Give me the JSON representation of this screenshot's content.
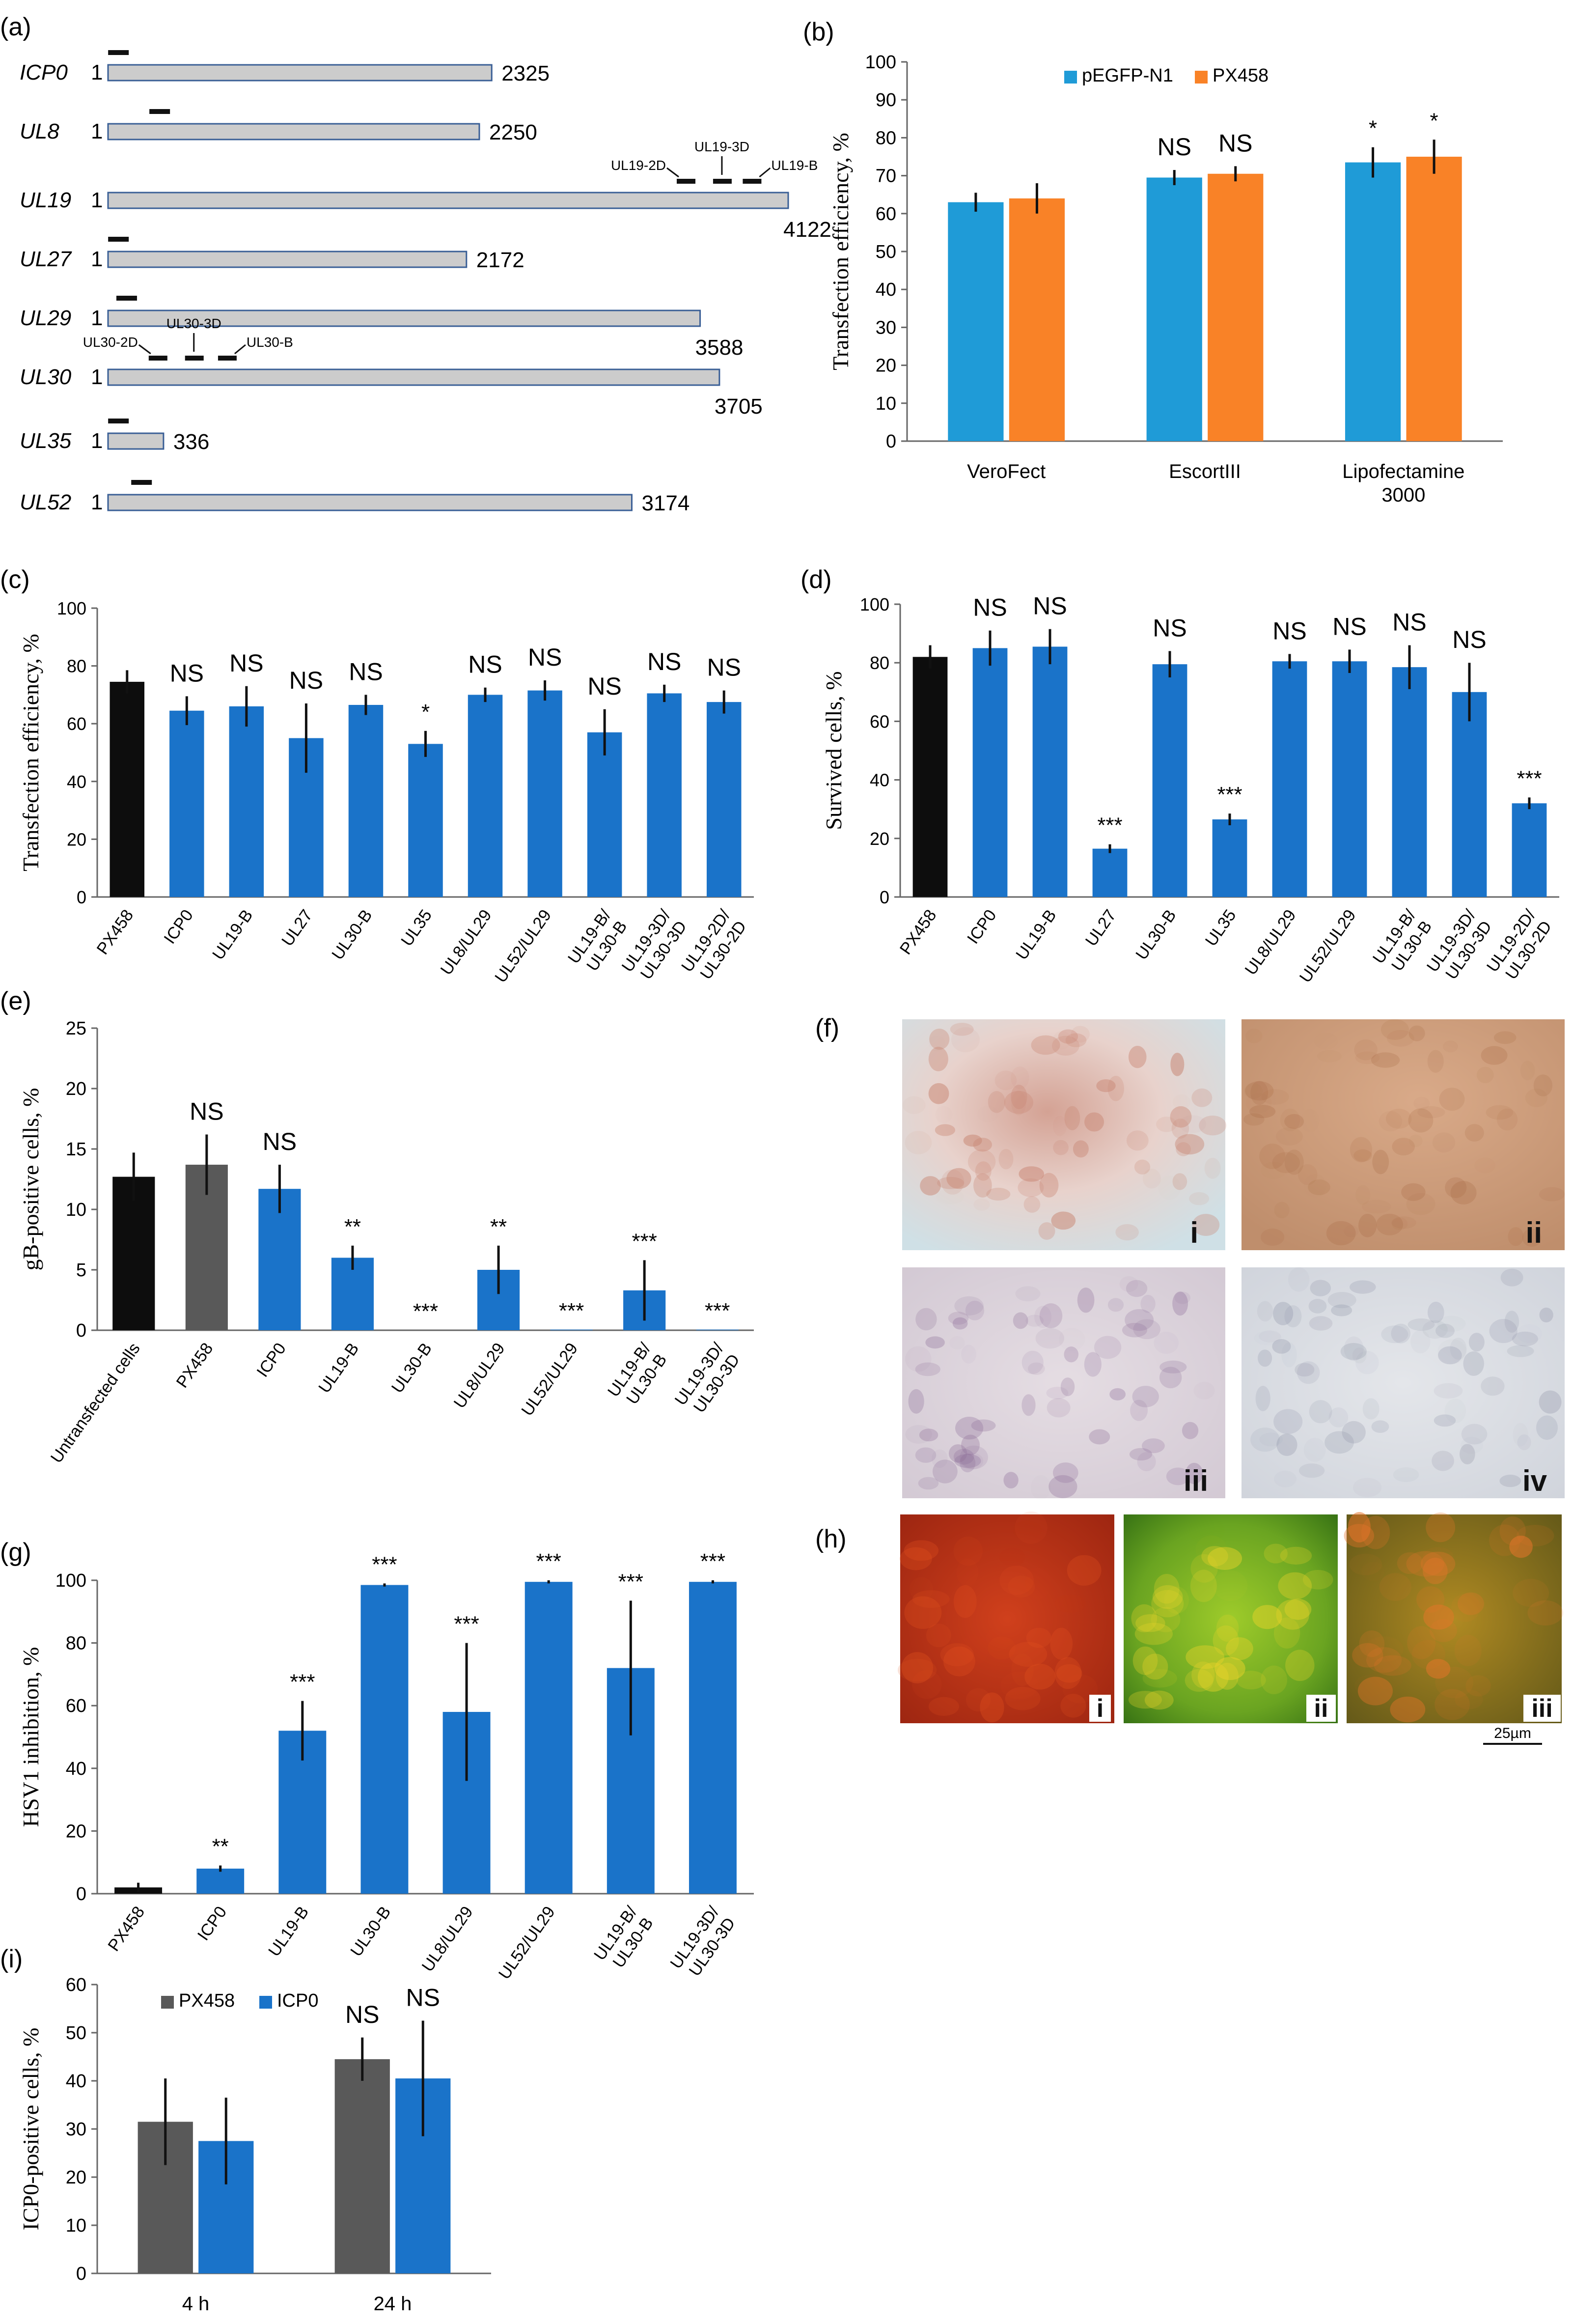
{
  "colors": {
    "blue": "#1a73c9",
    "cyan": "#1f9bd7",
    "orange": "#f98227",
    "black": "#0d0d0d",
    "gray": "#595959",
    "gene_bar": "#cccccc",
    "gene_outline": "#3a5f96"
  },
  "panel_a": {
    "label": "(a)",
    "genes": [
      {
        "name": "ICP0",
        "start": "1",
        "end": "2325",
        "length": 2325,
        "guide_pos": 60
      },
      {
        "name": "UL8",
        "start": "1",
        "end": "2250",
        "length": 2250,
        "guide_pos": 310
      },
      {
        "name": "UL19",
        "start": "1",
        "end": "4122",
        "length": 4122
      },
      {
        "name": "UL27",
        "start": "1",
        "end": "2172",
        "length": 2172,
        "guide_pos": 60
      },
      {
        "name": "UL29",
        "start": "1",
        "end": "3588",
        "length": 3588,
        "guide_pos": 110
      },
      {
        "name": "UL30",
        "start": "1",
        "end": "3705",
        "length": 3705
      },
      {
        "name": "UL35",
        "start": "1",
        "end": "336",
        "length": 336,
        "guide_pos": 60
      },
      {
        "name": "UL52",
        "start": "1",
        "end": "3174",
        "length": 3174,
        "guide_pos": 200
      }
    ],
    "ul19_guides": {
      "labels": [
        "UL19-2D",
        "UL19-3D",
        "UL19-B"
      ],
      "positions": [
        3500,
        3720,
        3900
      ]
    },
    "ul30_guides": {
      "labels": [
        "UL30-2D",
        "UL30-3D",
        "UL30-B"
      ],
      "positions": [
        300,
        520,
        720
      ]
    }
  },
  "chart_data": [
    {
      "id": "b",
      "label": "(b)",
      "type": "bar",
      "ylabel": "Transfection efficiency, %",
      "ylim": [
        0,
        100
      ],
      "yticks": [
        0,
        10,
        20,
        30,
        40,
        50,
        60,
        70,
        80,
        90,
        100
      ],
      "categories": [
        "VeroFect",
        "EscortIII",
        "Lipofectamine\n3000"
      ],
      "series": [
        {
          "name": "pEGFP-N1",
          "color": "#1f9bd7",
          "values": [
            63,
            69.5,
            73.5
          ],
          "errors": [
            2.5,
            2,
            4
          ]
        },
        {
          "name": "PX458",
          "color": "#f98227",
          "values": [
            64,
            70.5,
            75
          ],
          "errors": [
            4,
            2,
            4.5
          ]
        }
      ],
      "annotations": [
        [
          "",
          ""
        ],
        [
          "NS",
          "NS"
        ],
        [
          "*",
          "*"
        ]
      ],
      "legend": "top"
    },
    {
      "id": "c",
      "label": "(c)",
      "type": "bar",
      "ylabel": "Transfection efficiency, %",
      "ylim": [
        0,
        100
      ],
      "yticks": [
        0,
        20,
        40,
        60,
        80,
        100
      ],
      "categories": [
        "PX458",
        "ICP0",
        "UL19-B",
        "UL27",
        "UL30-B",
        "UL35",
        "UL8/UL29",
        "UL52/UL29",
        "UL19-B/\nUL30-B",
        "UL19-3D/\nUL30-3D",
        "UL19-2D/\nUL30-2D"
      ],
      "values": [
        74.5,
        64.5,
        66,
        55,
        66.5,
        53,
        70,
        71.5,
        57,
        70.5,
        67.5
      ],
      "errors": [
        4,
        5,
        7,
        12,
        3.5,
        4.5,
        2.5,
        3.5,
        8,
        3,
        4
      ],
      "bar_colors": [
        "#0d0d0d",
        "#1a73c9",
        "#1a73c9",
        "#1a73c9",
        "#1a73c9",
        "#1a73c9",
        "#1a73c9",
        "#1a73c9",
        "#1a73c9",
        "#1a73c9",
        "#1a73c9"
      ],
      "annotations": [
        "",
        "NS",
        "NS",
        "NS",
        "NS",
        "*",
        "NS",
        "NS",
        "NS",
        "NS",
        "NS"
      ]
    },
    {
      "id": "d",
      "label": "(d)",
      "type": "bar",
      "ylabel": "Survived cells, %",
      "ylim": [
        0,
        100
      ],
      "yticks": [
        0,
        20,
        40,
        60,
        80,
        100
      ],
      "categories": [
        "PX458",
        "ICP0",
        "UL19-B",
        "UL27",
        "UL30-B",
        "UL35",
        "UL8/UL29",
        "UL52/UL29",
        "UL19-B/\nUL30-B",
        "UL19-3D/\nUL30-3D",
        "UL19-2D/\nUL30-2D"
      ],
      "values": [
        82,
        85,
        85.5,
        16.5,
        79.5,
        26.5,
        80.5,
        80.5,
        78.5,
        70,
        32
      ],
      "errors": [
        4,
        6,
        6,
        1.5,
        4.5,
        2,
        2.5,
        4,
        7.5,
        10,
        2
      ],
      "bar_colors": [
        "#0d0d0d",
        "#1a73c9",
        "#1a73c9",
        "#1a73c9",
        "#1a73c9",
        "#1a73c9",
        "#1a73c9",
        "#1a73c9",
        "#1a73c9",
        "#1a73c9",
        "#1a73c9"
      ],
      "annotations": [
        "",
        "NS",
        "NS",
        "***",
        "NS",
        "***",
        "NS",
        "NS",
        "NS",
        "NS",
        "***"
      ]
    },
    {
      "id": "e",
      "label": "(e)",
      "type": "bar",
      "ylabel": "gB-positive cells, %",
      "ylim": [
        0,
        25
      ],
      "yticks": [
        0,
        5,
        10,
        15,
        20,
        25
      ],
      "categories": [
        "Untransfected cells",
        "PX458",
        "ICP0",
        "UL19-B",
        "UL30-B",
        "UL8/UL29",
        "UL52/UL29",
        "UL19-B/\nUL30-B",
        "UL19-3D/\nUL30-3D"
      ],
      "values": [
        12.7,
        13.7,
        11.7,
        6,
        0,
        5,
        0.05,
        3.3,
        0.05
      ],
      "errors": [
        2,
        2.5,
        2,
        1,
        0,
        2,
        0,
        2.5,
        0
      ],
      "bar_colors": [
        "#0d0d0d",
        "#595959",
        "#1a73c9",
        "#1a73c9",
        "#1a73c9",
        "#1a73c9",
        "#1a73c9",
        "#1a73c9",
        "#1a73c9"
      ],
      "annotations": [
        "",
        "NS",
        "NS",
        "**",
        "***",
        "**",
        "***",
        "***",
        "***"
      ]
    },
    {
      "id": "g",
      "label": "(g)",
      "type": "bar",
      "ylabel": "HSV1 inhibition, %",
      "ylim": [
        0,
        100
      ],
      "yticks": [
        0,
        20,
        40,
        60,
        80,
        100
      ],
      "categories": [
        "PX458",
        "ICP0",
        "UL19-B",
        "UL30-B",
        "UL8/UL29",
        "UL52/UL29",
        "UL19-B/\nUL30-B",
        "UL19-3D/\nUL30-3D"
      ],
      "values": [
        2,
        8,
        52,
        98.5,
        58,
        99.5,
        72,
        99.5
      ],
      "errors": [
        1.5,
        1,
        9.5,
        0.5,
        22,
        0.5,
        21.5,
        0.5
      ],
      "bar_colors": [
        "#0d0d0d",
        "#1a73c9",
        "#1a73c9",
        "#1a73c9",
        "#1a73c9",
        "#1a73c9",
        "#1a73c9",
        "#1a73c9"
      ],
      "annotations": [
        "",
        "**",
        "***",
        "***",
        "***",
        "***",
        "***",
        "***"
      ]
    },
    {
      "id": "i",
      "label": "(i)",
      "type": "bar",
      "ylabel": "ICP0-positive cells, %",
      "ylim": [
        0,
        60
      ],
      "yticks": [
        0,
        10,
        20,
        30,
        40,
        50,
        60
      ],
      "categories": [
        "4 h",
        "24 h"
      ],
      "series": [
        {
          "name": "PX458",
          "color": "#595959",
          "values": [
            31.5,
            44.5
          ],
          "errors": [
            9,
            4.5
          ]
        },
        {
          "name": "ICP0",
          "color": "#1a73c9",
          "values": [
            27.5,
            40.5
          ],
          "errors": [
            9,
            12
          ]
        }
      ],
      "annotations": [
        [
          "",
          ""
        ],
        [
          "NS",
          "NS"
        ]
      ],
      "legend": "top-left"
    }
  ],
  "panel_f": {
    "label": "(f)",
    "tiles": [
      "i",
      "ii",
      "iii",
      "iv"
    ],
    "tile_colors": [
      "#d9b7ae",
      "#c79a7c",
      "#e0d6dc",
      "#dcdde3"
    ]
  },
  "panel_h": {
    "label": "(h)",
    "tiles": [
      "i",
      "ii",
      "iii"
    ],
    "scale_bar": "25µm"
  }
}
